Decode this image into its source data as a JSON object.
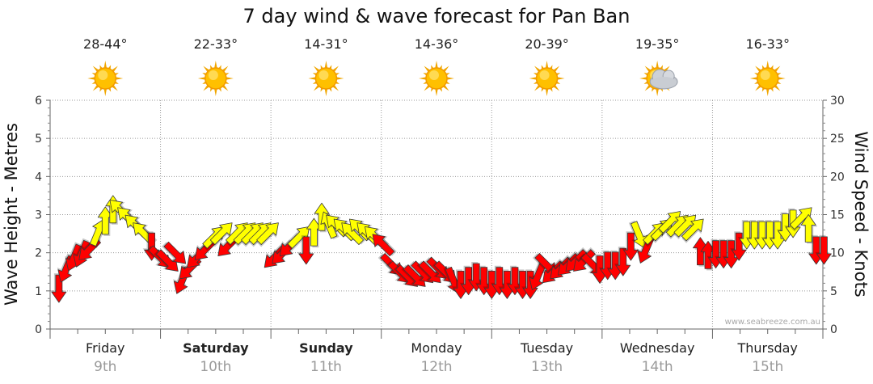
{
  "chart_data": {
    "type": "line",
    "title": "7 day wind & wave forecast for Pan Ban",
    "ylabel": "Wave Height - Metres",
    "y2label": "Wind Speed - Knots",
    "ylim": [
      0,
      6
    ],
    "y2lim": [
      0,
      30
    ],
    "yticks": [
      "0",
      "1",
      "2",
      "3",
      "4",
      "5",
      "6"
    ],
    "y2ticks": [
      "0",
      "5",
      "10",
      "15",
      "20",
      "25",
      "30"
    ],
    "grid": true,
    "credit": "www.seabreeze.com.au",
    "days": [
      {
        "name": "Friday",
        "date": "9th",
        "temp": "28-44°",
        "icon": "sun-icon",
        "bold": false
      },
      {
        "name": "Saturday",
        "date": "10th",
        "temp": "22-33°",
        "icon": "sun-icon",
        "bold": true
      },
      {
        "name": "Sunday",
        "date": "11th",
        "temp": "14-31°",
        "icon": "sun-icon",
        "bold": true
      },
      {
        "name": "Monday",
        "date": "12th",
        "temp": "14-36°",
        "icon": "sun-icon",
        "bold": false
      },
      {
        "name": "Tuesday",
        "date": "13th",
        "temp": "20-39°",
        "icon": "sun-icon",
        "bold": false
      },
      {
        "name": "Wednesday",
        "date": "14th",
        "temp": "19-35°",
        "icon": "sun-cloud-icon",
        "bold": false
      },
      {
        "name": "Thursday",
        "date": "15th",
        "temp": "16-33°",
        "icon": "sun-icon",
        "bold": false
      }
    ],
    "series": [
      {
        "type": "wind",
        "unit": "knots",
        "colors": {
          "below_12_knots": "#ff0000",
          "12_knots_and_above": "#ffff00"
        },
        "points": [
          {
            "t": 0.0,
            "v": 5.5,
            "dir": "N"
          },
          {
            "t": 0.07,
            "v": 8.0,
            "dir": "NNE"
          },
          {
            "t": 0.14,
            "v": 9.5,
            "dir": "NNE"
          },
          {
            "t": 0.21,
            "v": 10.0,
            "dir": "NNE"
          },
          {
            "t": 0.28,
            "v": 10.5,
            "dir": "NE"
          },
          {
            "t": 0.35,
            "v": 12.5,
            "dir": "SSW"
          },
          {
            "t": 0.42,
            "v": 14.0,
            "dir": "S"
          },
          {
            "t": 0.49,
            "v": 15.5,
            "dir": "S"
          },
          {
            "t": 0.56,
            "v": 15.5,
            "dir": "SE"
          },
          {
            "t": 0.63,
            "v": 14.5,
            "dir": "SE"
          },
          {
            "t": 0.7,
            "v": 13.5,
            "dir": "SE"
          },
          {
            "t": 0.77,
            "v": 12.5,
            "dir": "SE"
          },
          {
            "t": 0.84,
            "v": 11.0,
            "dir": "N"
          },
          {
            "t": 0.91,
            "v": 9.5,
            "dir": "NW"
          },
          {
            "t": 0.98,
            "v": 9.0,
            "dir": "NW"
          },
          {
            "t": 1.05,
            "v": 10.0,
            "dir": "NW"
          },
          {
            "t": 1.12,
            "v": 6.5,
            "dir": "NNE"
          },
          {
            "t": 1.19,
            "v": 8.0,
            "dir": "NE"
          },
          {
            "t": 1.26,
            "v": 9.5,
            "dir": "NE"
          },
          {
            "t": 1.33,
            "v": 10.5,
            "dir": "NE"
          },
          {
            "t": 1.4,
            "v": 12.0,
            "dir": "SW"
          },
          {
            "t": 1.47,
            "v": 12.5,
            "dir": "SW"
          },
          {
            "t": 1.54,
            "v": 11.0,
            "dir": "NE"
          },
          {
            "t": 1.61,
            "v": 12.5,
            "dir": "SW"
          },
          {
            "t": 1.68,
            "v": 12.5,
            "dir": "SW"
          },
          {
            "t": 1.75,
            "v": 12.5,
            "dir": "SW"
          },
          {
            "t": 1.82,
            "v": 12.5,
            "dir": "SW"
          },
          {
            "t": 1.89,
            "v": 12.5,
            "dir": "SW"
          },
          {
            "t": 1.96,
            "v": 9.5,
            "dir": "NE"
          },
          {
            "t": 2.03,
            "v": 10.0,
            "dir": "NE"
          },
          {
            "t": 2.1,
            "v": 11.0,
            "dir": "NE"
          },
          {
            "t": 2.17,
            "v": 12.0,
            "dir": "SW"
          },
          {
            "t": 2.24,
            "v": 10.5,
            "dir": "N"
          },
          {
            "t": 2.31,
            "v": 12.5,
            "dir": "S"
          },
          {
            "t": 2.38,
            "v": 14.5,
            "dir": "S"
          },
          {
            "t": 2.45,
            "v": 13.5,
            "dir": "SSE"
          },
          {
            "t": 2.52,
            "v": 13.5,
            "dir": "SE"
          },
          {
            "t": 2.59,
            "v": 13.0,
            "dir": "SE"
          },
          {
            "t": 2.66,
            "v": 12.5,
            "dir": "SE"
          },
          {
            "t": 2.73,
            "v": 13.0,
            "dir": "SE"
          },
          {
            "t": 2.8,
            "v": 12.5,
            "dir": "SE"
          },
          {
            "t": 2.87,
            "v": 12.0,
            "dir": "SE"
          },
          {
            "t": 2.94,
            "v": 11.0,
            "dir": "SE"
          },
          {
            "t": 3.01,
            "v": 8.5,
            "dir": "NW"
          },
          {
            "t": 3.08,
            "v": 7.5,
            "dir": "NW"
          },
          {
            "t": 3.15,
            "v": 7.0,
            "dir": "NW"
          },
          {
            "t": 3.22,
            "v": 7.0,
            "dir": "NW"
          },
          {
            "t": 3.29,
            "v": 7.5,
            "dir": "NW"
          },
          {
            "t": 3.36,
            "v": 7.5,
            "dir": "NW"
          },
          {
            "t": 3.43,
            "v": 8.0,
            "dir": "NW"
          },
          {
            "t": 3.5,
            "v": 7.5,
            "dir": "NW"
          },
          {
            "t": 3.57,
            "v": 6.5,
            "dir": "NNW"
          },
          {
            "t": 3.64,
            "v": 6.0,
            "dir": "N"
          },
          {
            "t": 3.71,
            "v": 6.5,
            "dir": "N"
          },
          {
            "t": 3.78,
            "v": 7.0,
            "dir": "N"
          },
          {
            "t": 3.85,
            "v": 6.5,
            "dir": "N"
          },
          {
            "t": 3.92,
            "v": 6.0,
            "dir": "N"
          },
          {
            "t": 3.99,
            "v": 6.5,
            "dir": "N"
          },
          {
            "t": 4.06,
            "v": 6.0,
            "dir": "N"
          },
          {
            "t": 4.13,
            "v": 6.5,
            "dir": "N"
          },
          {
            "t": 4.2,
            "v": 6.0,
            "dir": "N"
          },
          {
            "t": 4.27,
            "v": 6.0,
            "dir": "N"
          },
          {
            "t": 4.34,
            "v": 7.0,
            "dir": "NNE"
          },
          {
            "t": 4.41,
            "v": 8.5,
            "dir": "NW"
          },
          {
            "t": 4.48,
            "v": 7.5,
            "dir": "NE"
          },
          {
            "t": 4.55,
            "v": 8.0,
            "dir": "NE"
          },
          {
            "t": 4.62,
            "v": 8.5,
            "dir": "NE"
          },
          {
            "t": 4.69,
            "v": 9.0,
            "dir": "NE"
          },
          {
            "t": 4.76,
            "v": 9.0,
            "dir": "NE"
          },
          {
            "t": 4.83,
            "v": 8.5,
            "dir": "NW"
          },
          {
            "t": 4.9,
            "v": 8.0,
            "dir": "N"
          },
          {
            "t": 4.97,
            "v": 8.5,
            "dir": "N"
          },
          {
            "t": 5.04,
            "v": 8.5,
            "dir": "N"
          },
          {
            "t": 5.11,
            "v": 9.0,
            "dir": "N"
          },
          {
            "t": 5.18,
            "v": 11.0,
            "dir": "N"
          },
          {
            "t": 5.25,
            "v": 12.5,
            "dir": "NNW"
          },
          {
            "t": 5.32,
            "v": 10.5,
            "dir": "NNE"
          },
          {
            "t": 5.39,
            "v": 12.5,
            "dir": "SW"
          },
          {
            "t": 5.46,
            "v": 13.0,
            "dir": "SW"
          },
          {
            "t": 5.53,
            "v": 14.0,
            "dir": "SW"
          },
          {
            "t": 5.6,
            "v": 13.5,
            "dir": "SW"
          },
          {
            "t": 5.67,
            "v": 13.5,
            "dir": "SW"
          },
          {
            "t": 5.74,
            "v": 13.0,
            "dir": "SW"
          },
          {
            "t": 5.81,
            "v": 10.0,
            "dir": "S"
          },
          {
            "t": 5.88,
            "v": 9.5,
            "dir": "S"
          },
          {
            "t": 5.95,
            "v": 10.0,
            "dir": "N"
          },
          {
            "t": 6.02,
            "v": 10.0,
            "dir": "N"
          },
          {
            "t": 6.09,
            "v": 10.0,
            "dir": "N"
          },
          {
            "t": 6.16,
            "v": 11.0,
            "dir": "N"
          },
          {
            "t": 6.23,
            "v": 12.5,
            "dir": "N"
          },
          {
            "t": 6.3,
            "v": 12.5,
            "dir": "N"
          },
          {
            "t": 6.37,
            "v": 12.5,
            "dir": "N"
          },
          {
            "t": 6.44,
            "v": 12.5,
            "dir": "N"
          },
          {
            "t": 6.51,
            "v": 12.5,
            "dir": "N"
          },
          {
            "t": 6.58,
            "v": 13.5,
            "dir": "N"
          },
          {
            "t": 6.65,
            "v": 14.0,
            "dir": "N"
          },
          {
            "t": 6.72,
            "v": 14.5,
            "dir": "SW"
          },
          {
            "t": 6.79,
            "v": 13.0,
            "dir": "S"
          },
          {
            "t": 6.86,
            "v": 10.5,
            "dir": "N"
          },
          {
            "t": 6.93,
            "v": 10.5,
            "dir": "N"
          }
        ]
      }
    ]
  }
}
